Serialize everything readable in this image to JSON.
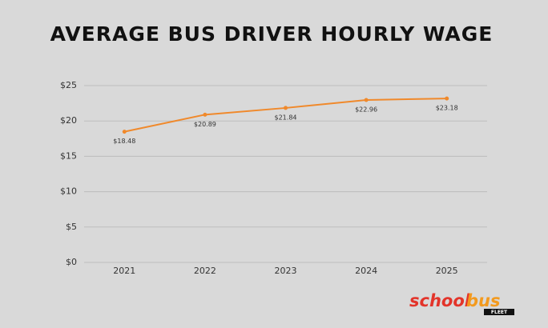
{
  "chart_data": {
    "type": "line",
    "title": "AVERAGE BUS DRIVER HOURLY WAGE",
    "categories": [
      "2021",
      "2022",
      "2023",
      "2024",
      "2025"
    ],
    "values": [
      18.48,
      20.89,
      21.84,
      22.96,
      23.18
    ],
    "value_labels": [
      "$18.48",
      "$20.89",
      "$21.84",
      "$22.96",
      "$23.18"
    ],
    "color": "#f0892b",
    "ylim": [
      0,
      25
    ],
    "yticks": [
      {
        "value": 0,
        "label": "$0"
      },
      {
        "value": 5,
        "label": "$5"
      },
      {
        "value": 10,
        "label": "$10"
      },
      {
        "value": 15,
        "label": "$15"
      },
      {
        "value": 20,
        "label": "$20"
      },
      {
        "value": 25,
        "label": "$25"
      }
    ],
    "grid": true
  },
  "logo": {
    "school": "school",
    "bus": "bus",
    "fleet": "FLEET"
  }
}
